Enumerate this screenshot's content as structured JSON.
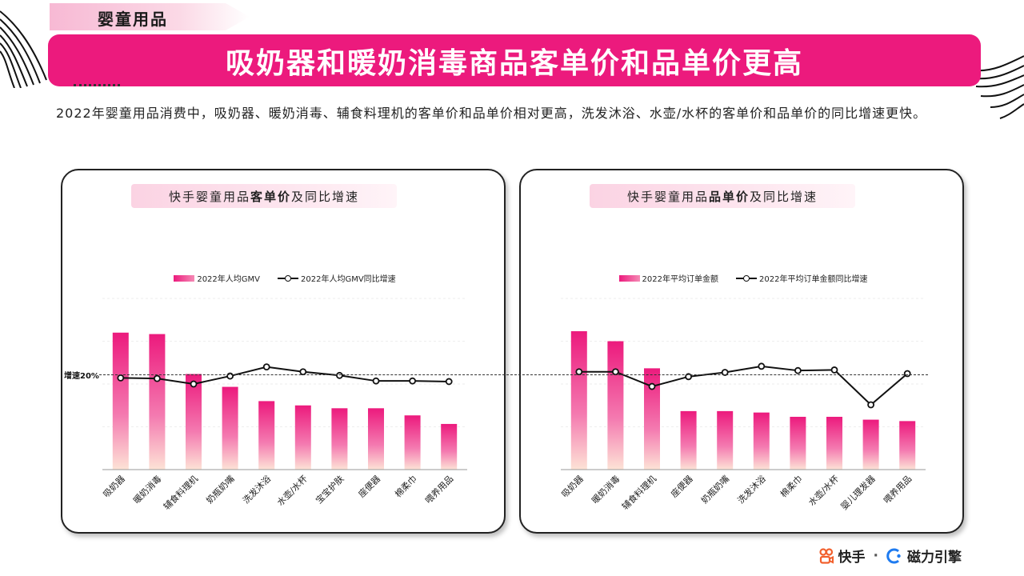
{
  "section_tag": "婴童用品",
  "title": "吸奶器和暖奶消毒商品客单价和品单价更高",
  "intro": "2022年婴童用品消费中，吸奶器、暖奶消毒、辅食料理机的客单价和品单价相对更高，洗发沐浴、水壶/水杯的客单价和品单价的同比增速更快。",
  "reference_label": "增速20%",
  "footer": {
    "brand1": "快手",
    "separator": "·",
    "brand2": "磁力引擎"
  },
  "colors": {
    "accent": "#ec1a7d",
    "bar_top": "#ec1a7d",
    "bar_bottom": "#fde3d6",
    "line": "#111111"
  },
  "chart_data": [
    {
      "type": "bar",
      "title_pre": "快手婴童用品",
      "title_bold": "客单价",
      "title_post": "及同比增速",
      "legend_bar": "2022年人均GMV",
      "legend_line": "2022年人均GMV同比增速",
      "categories": [
        "吸奶器",
        "暖奶消毒",
        "辅食料理机",
        "奶瓶奶嘴",
        "洗发沐浴",
        "水壶/水杯",
        "宝宝护肤",
        "座便器",
        "棉柔巾",
        "喂养用品"
      ],
      "series": [
        {
          "name": "2022年人均GMV",
          "kind": "bar",
          "values": [
            96,
            95,
            67,
            58,
            48,
            45,
            43,
            43,
            38,
            32
          ]
        },
        {
          "name": "2022年人均GMV同比增速",
          "kind": "line",
          "values": [
            15,
            14.5,
            10,
            16.5,
            24,
            20,
            17,
            12.5,
            12.5,
            12
          ]
        }
      ],
      "ylim": [
        0,
        120
      ],
      "growth_ylim": [
        -60,
        80
      ]
    },
    {
      "type": "bar",
      "title_pre": "快手婴童用品",
      "title_bold": "品单价",
      "title_post": "及同比增速",
      "legend_bar": "2022年平均订单金额",
      "legend_line": "2022年平均订单金额同比增速",
      "categories": [
        "吸奶器",
        "暖奶消毒",
        "辅食料理机",
        "座便器",
        "奶瓶奶嘴",
        "洗发沐浴",
        "棉柔巾",
        "水壶/水杯",
        "婴儿理发器",
        "喂养用品"
      ],
      "series": [
        {
          "name": "2022年平均订单金额",
          "kind": "bar",
          "values": [
            97,
            90,
            71,
            41,
            41,
            40,
            37,
            37,
            35,
            34
          ]
        },
        {
          "name": "2022年平均订单金额同比增速",
          "kind": "line",
          "values": [
            20,
            20,
            8,
            16,
            19.5,
            24.5,
            21,
            21.5,
            -7,
            18.5
          ]
        }
      ],
      "ylim": [
        0,
        120
      ],
      "growth_ylim": [
        -60,
        80
      ]
    }
  ]
}
